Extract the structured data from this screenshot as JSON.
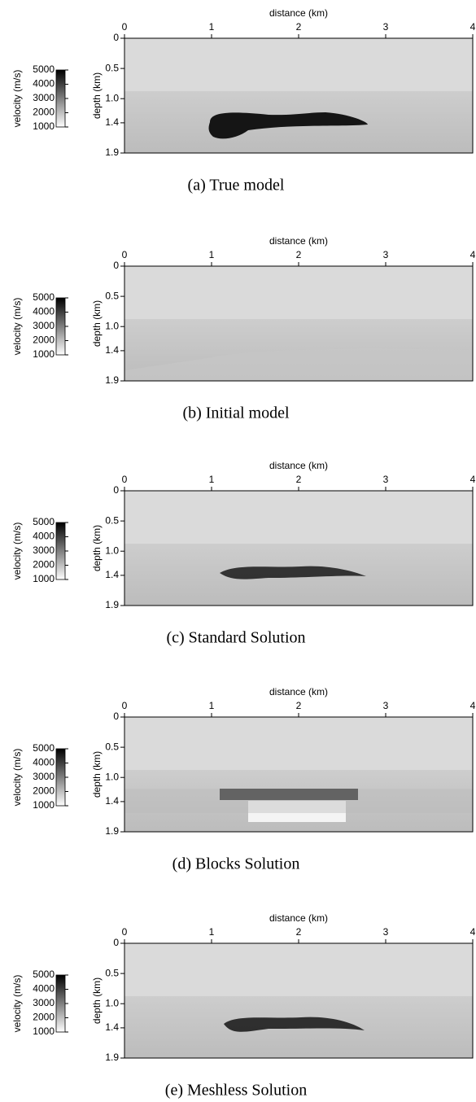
{
  "chart_data": [
    {
      "type": "image",
      "title": "(a)  True model",
      "xlabel": "distance (km)",
      "ylabel": "depth (km)",
      "xlim": [
        0,
        4
      ],
      "ylim": [
        0,
        1.9
      ],
      "xticks": [
        0,
        1,
        2,
        3,
        4
      ],
      "yticks": [
        0,
        0.5,
        {
          "value": 1,
          "label": "1.0"
        },
        1.4,
        1.9
      ],
      "colorbar": {
        "label": "velocity (m/s)",
        "lim": [
          1000,
          5000
        ],
        "ticks": [
          1000,
          2000,
          3000,
          4000,
          5000
        ]
      }
    },
    {
      "type": "image",
      "title": "(b)  Initial model",
      "xlabel": "distance (km)",
      "ylabel": "depth (km)",
      "xlim": [
        0,
        4
      ],
      "ylim": [
        0,
        1.9
      ],
      "xticks": [
        0,
        1,
        2,
        3,
        4
      ],
      "yticks": [
        0,
        0.5,
        {
          "value": 1,
          "label": "1.0"
        },
        1.4,
        1.9
      ],
      "colorbar": {
        "label": "velocity (m/s)",
        "lim": [
          1000,
          5000
        ],
        "ticks": [
          1000,
          2000,
          3000,
          4000,
          5000
        ]
      }
    },
    {
      "type": "image",
      "title": "(c)  Standard Solution",
      "xlabel": "distance (km)",
      "ylabel": "depth (km)",
      "xlim": [
        0,
        4
      ],
      "ylim": [
        0,
        1.9
      ],
      "xticks": [
        0,
        1,
        2,
        3,
        4
      ],
      "yticks": [
        0,
        0.5,
        {
          "value": 1,
          "label": "1.0"
        },
        1.4,
        1.9
      ],
      "colorbar": {
        "label": "velocity (m/s)",
        "lim": [
          1000,
          5000
        ],
        "ticks": [
          1000,
          2000,
          3000,
          4000,
          5000
        ]
      }
    },
    {
      "type": "image",
      "title": "(d)  Blocks Solution",
      "xlabel": "distance (km)",
      "ylabel": "depth (km)",
      "xlim": [
        0,
        4
      ],
      "ylim": [
        0,
        1.9
      ],
      "xticks": [
        0,
        1,
        2,
        3,
        4
      ],
      "yticks": [
        0,
        0.5,
        {
          "value": 1,
          "label": "1.0"
        },
        1.4,
        1.9
      ],
      "colorbar": {
        "label": "velocity (m/s)",
        "lim": [
          1000,
          5000
        ],
        "ticks": [
          1000,
          2000,
          3000,
          4000,
          5000
        ]
      }
    },
    {
      "type": "image",
      "title": "(e)  Meshless Solution",
      "xlabel": "distance (km)",
      "ylabel": "depth (km)",
      "xlim": [
        0,
        4
      ],
      "ylim": [
        0,
        1.9
      ],
      "xticks": [
        0,
        1,
        2,
        3,
        4
      ],
      "yticks": [
        0,
        0.5,
        {
          "value": 1,
          "label": "1.0"
        },
        1.4,
        1.9
      ],
      "colorbar": {
        "label": "velocity (m/s)",
        "lim": [
          1000,
          5000
        ],
        "ticks": [
          1000,
          2000,
          3000,
          4000,
          5000
        ]
      }
    }
  ]
}
